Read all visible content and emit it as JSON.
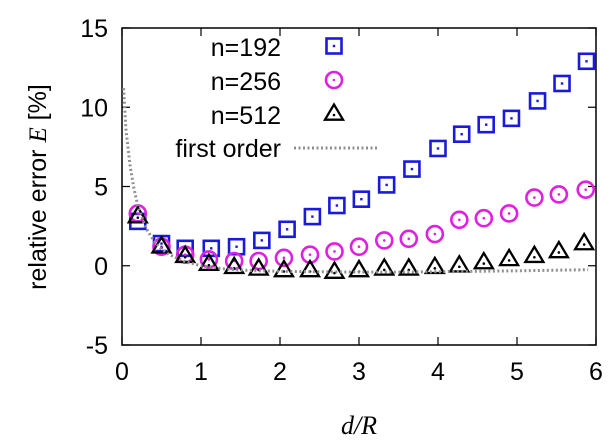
{
  "chart_data": {
    "type": "scatter",
    "xlabel": "d/R",
    "ylabel_prefix": "relative error ",
    "ylabel_symbol": "E",
    "ylabel_suffix": " [%]",
    "xlim": [
      0,
      6
    ],
    "ylim": [
      -5,
      15
    ],
    "x_ticks": [
      0,
      1,
      2,
      3,
      4,
      5,
      6
    ],
    "x_tick_labels": [
      "0",
      "1",
      "2",
      "3",
      "4",
      "5",
      "6"
    ],
    "y_ticks": [
      -5,
      0,
      5,
      10,
      15
    ],
    "y_tick_labels": [
      "-5",
      "0",
      "5",
      "10",
      "15"
    ],
    "grid": false,
    "legend_position": "top-left",
    "series": [
      {
        "name": "n=192",
        "marker": "square",
        "color": "#1a1adb",
        "x": [
          0.2,
          0.5,
          0.8,
          1.13,
          1.45,
          1.77,
          2.09,
          2.41,
          2.72,
          3.03,
          3.35,
          3.67,
          4.0,
          4.3,
          4.61,
          4.93,
          5.26,
          5.57,
          5.88
        ],
        "y": [
          2.8,
          1.4,
          1.1,
          1.1,
          1.2,
          1.6,
          2.3,
          3.1,
          3.8,
          4.2,
          5.1,
          6.1,
          7.4,
          8.3,
          8.9,
          9.3,
          10.4,
          11.5,
          12.9
        ]
      },
      {
        "name": "n=256",
        "marker": "circle",
        "color": "#e020e0",
        "x": [
          0.2,
          0.5,
          0.8,
          1.1,
          1.42,
          1.73,
          2.05,
          2.38,
          2.69,
          3.0,
          3.32,
          3.63,
          3.96,
          4.27,
          4.58,
          4.9,
          5.22,
          5.53,
          5.87
        ],
        "y": [
          3.3,
          1.2,
          0.7,
          0.4,
          0.3,
          0.3,
          0.5,
          0.7,
          0.9,
          1.2,
          1.6,
          1.7,
          2.0,
          2.9,
          3.0,
          3.3,
          4.3,
          4.5,
          4.8
        ]
      },
      {
        "name": "n=512",
        "marker": "triangle",
        "color": "#000000",
        "x": [
          0.2,
          0.5,
          0.8,
          1.1,
          1.42,
          1.73,
          2.05,
          2.38,
          2.69,
          3.0,
          3.32,
          3.63,
          3.96,
          4.27,
          4.58,
          4.9,
          5.22,
          5.53,
          5.85
        ],
        "y": [
          3.1,
          1.2,
          0.6,
          0.1,
          -0.1,
          -0.2,
          -0.3,
          -0.3,
          -0.4,
          -0.3,
          -0.2,
          -0.2,
          -0.1,
          0.0,
          0.2,
          0.4,
          0.6,
          0.9,
          1.4
        ]
      },
      {
        "name": "first order",
        "marker": "dotted-line",
        "color": "#909090",
        "x": [
          0.02,
          0.05,
          0.1,
          0.15,
          0.2,
          0.3,
          0.4,
          0.5,
          0.6,
          0.8,
          1.0,
          1.3,
          1.6,
          2.0,
          2.5,
          3.0,
          3.5,
          4.0,
          4.5,
          5.0,
          5.5,
          5.9
        ],
        "y": [
          11.2,
          8.6,
          6.4,
          4.9,
          3.8,
          2.4,
          1.6,
          1.05,
          0.7,
          0.25,
          0.0,
          -0.2,
          -0.3,
          -0.35,
          -0.38,
          -0.4,
          -0.4,
          -0.38,
          -0.35,
          -0.32,
          -0.28,
          -0.25
        ]
      }
    ]
  }
}
